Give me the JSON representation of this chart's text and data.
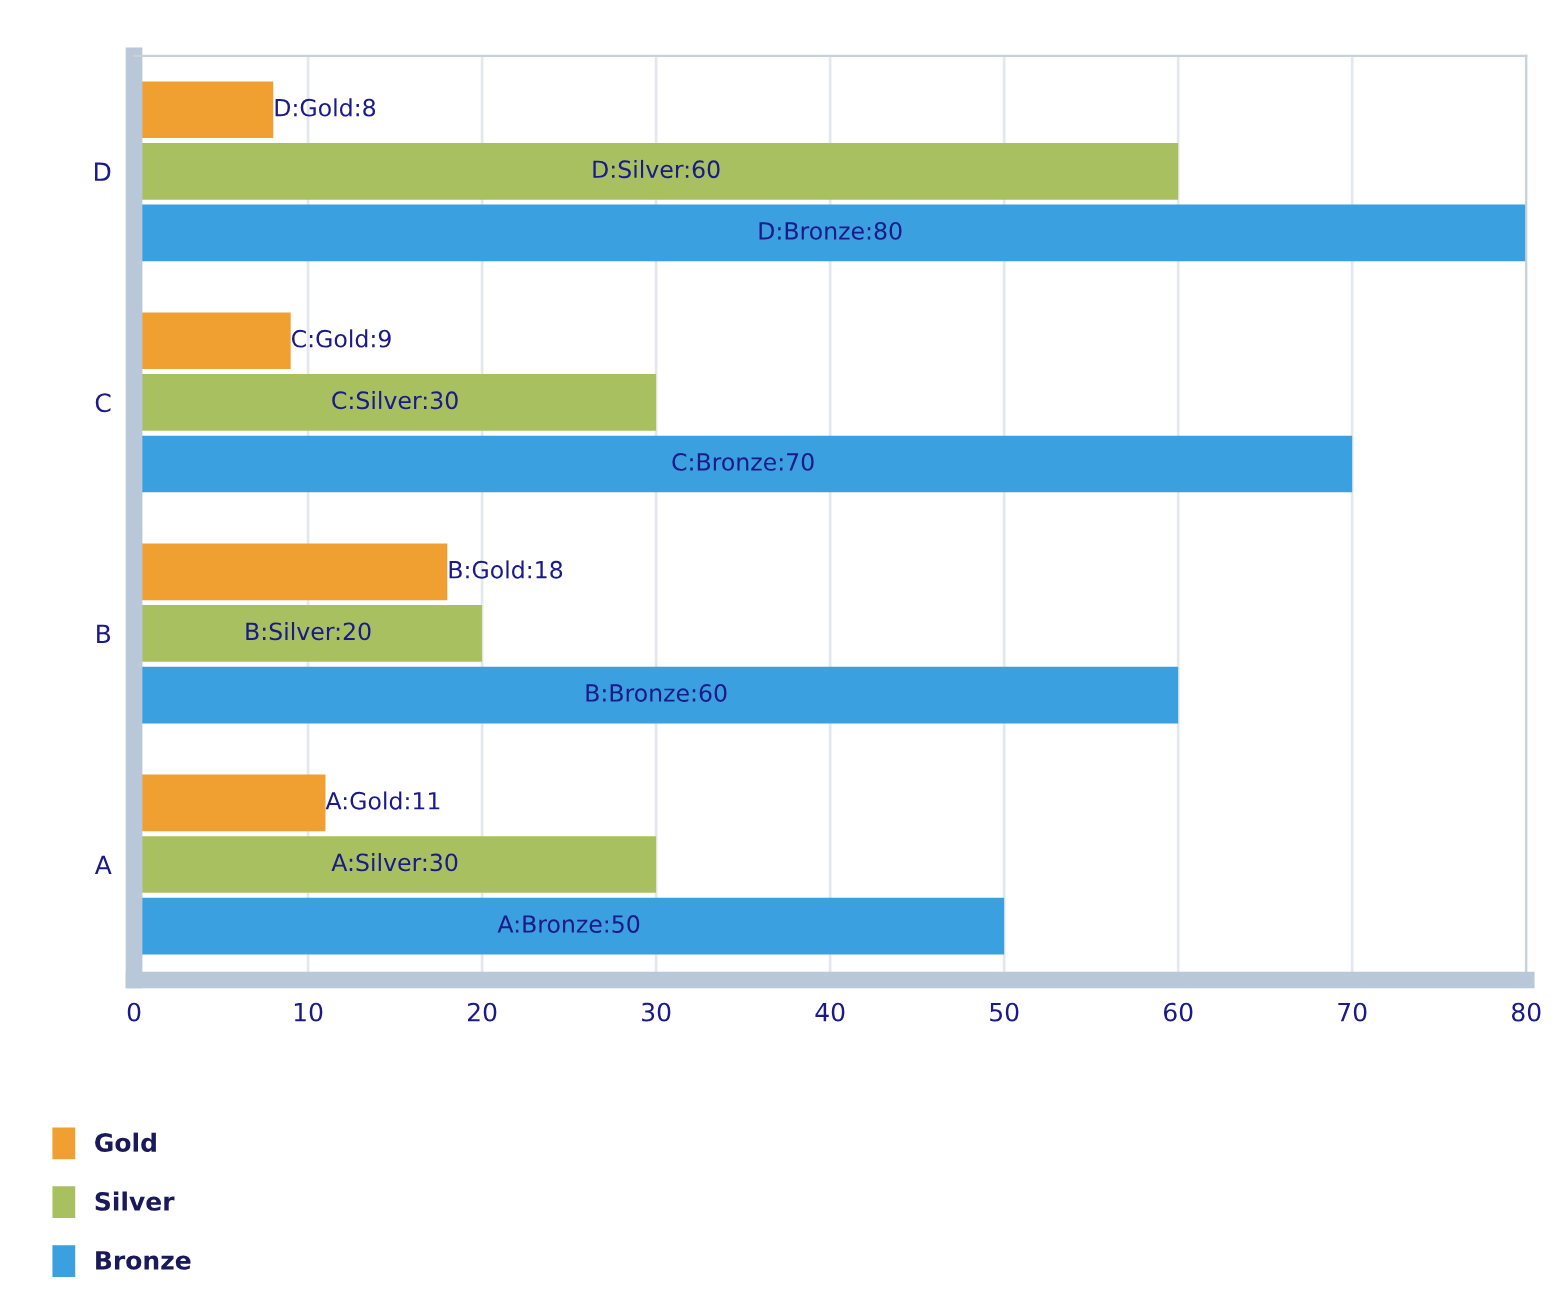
{
  "chart_data": {
    "type": "bar",
    "orientation": "horizontal",
    "categories": [
      "D",
      "C",
      "B",
      "A"
    ],
    "series": [
      {
        "name": "Gold",
        "color": "#f0a030",
        "values": [
          8,
          9,
          18,
          11
        ],
        "value_labels": [
          "D:Gold:8",
          "C:Gold:9",
          "B:Gold:18",
          "A:Gold:11"
        ]
      },
      {
        "name": "Silver",
        "color": "#a8c060",
        "values": [
          60,
          30,
          20,
          30
        ],
        "value_labels": [
          "D:Silver:60",
          "C:Silver:30",
          "B:Silver:20",
          "A:Silver:30"
        ]
      },
      {
        "name": "Bronze",
        "color": "#3aa0e0",
        "values": [
          80,
          70,
          60,
          50
        ],
        "value_labels": [
          "D:Bronze:80",
          "C:Bronze:70",
          "B:Bronze:60",
          "A:Bronze:50"
        ]
      }
    ],
    "xlim": [
      0,
      80
    ],
    "xticks": [
      0,
      10,
      20,
      30,
      40,
      50,
      60,
      70,
      80
    ],
    "grid": "x",
    "legend": "bottom left"
  }
}
